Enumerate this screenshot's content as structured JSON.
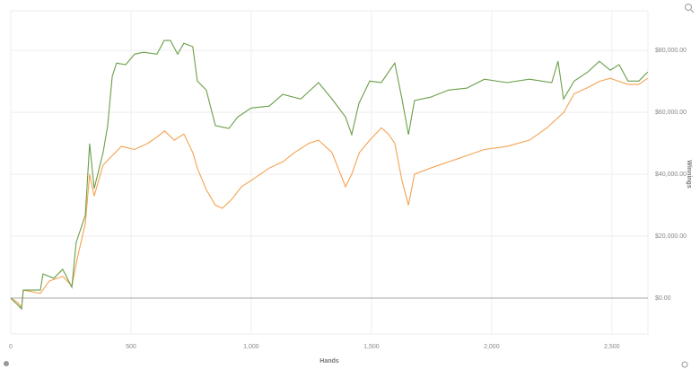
{
  "chart_data": {
    "type": "line",
    "x_label": "Hands",
    "y_label": "Winnings",
    "xlim": [
      0,
      2650
    ],
    "ylim": [
      -11600,
      92800
    ],
    "xticks": [
      0,
      500,
      {
        "value": 1000,
        "label": "1,000"
      },
      {
        "value": 1500,
        "label": "1,500"
      },
      {
        "value": 2000,
        "label": "2,000"
      },
      {
        "value": 2500,
        "label": "2,500"
      }
    ],
    "yticks": [
      {
        "value": 0,
        "label": "$0.00"
      },
      {
        "value": 20000,
        "label": "$20,000.00"
      },
      {
        "value": 40000,
        "label": "$40,000.00"
      },
      {
        "value": 60000,
        "label": "$60,000.00"
      },
      {
        "value": 80000,
        "label": "$80,000.00"
      }
    ],
    "grid": true,
    "series": [
      {
        "color": "#f4a24f",
        "x": [
          0,
          30,
          45,
          52,
          123,
          160,
          216,
          254,
          280,
          310,
          328,
          347,
          384,
          422,
          460,
          515,
          570,
          608,
          640,
          680,
          720,
          757,
          776,
          813,
          851,
          880,
          920,
          960,
          1000,
          1075,
          1131,
          1180,
          1240,
          1280,
          1336,
          1392,
          1418,
          1450,
          1493,
          1541,
          1570,
          1597,
          1627,
          1654,
          1679,
          1746,
          1821,
          1896,
          1970,
          2063,
          2157,
          2230,
          2300,
          2343,
          2400,
          2448,
          2493,
          2530,
          2567,
          2612,
          2649
        ],
        "values": [
          0,
          -1500,
          -3000,
          2600,
          1500,
          5500,
          7000,
          4000,
          14000,
          24000,
          40000,
          33000,
          43000,
          46000,
          49000,
          48000,
          50000,
          52000,
          54000,
          51000,
          53000,
          47000,
          42000,
          35000,
          30000,
          29000,
          32000,
          36000,
          38000,
          42000,
          44000,
          47000,
          50000,
          51000,
          47000,
          36000,
          40000,
          47000,
          51000,
          55000,
          53000,
          50000,
          38000,
          30000,
          40000,
          42000,
          44000,
          46000,
          48000,
          49000,
          51000,
          55000,
          60000,
          66000,
          68000,
          70000,
          71000,
          70000,
          69000,
          69000,
          71000
        ]
      },
      {
        "color": "#6a9f48",
        "x": [
          0,
          30,
          45,
          52,
          123,
          134,
          179,
          216,
          254,
          272,
          310,
          328,
          347,
          384,
          403,
          422,
          440,
          478,
          515,
          552,
          608,
          638,
          664,
          694,
          720,
          757,
          776,
          813,
          851,
          907,
          944,
          1000,
          1075,
          1131,
          1206,
          1280,
          1336,
          1392,
          1418,
          1448,
          1493,
          1541,
          1597,
          1627,
          1654,
          1679,
          1746,
          1821,
          1896,
          1970,
          2063,
          2157,
          2250,
          2276,
          2299,
          2343,
          2399,
          2448,
          2493,
          2530,
          2567,
          2612,
          2649
        ],
        "values": [
          0,
          -2300,
          -3500,
          2600,
          2600,
          7800,
          6400,
          9300,
          3500,
          18000,
          26700,
          49900,
          35400,
          47000,
          55700,
          71600,
          75900,
          75400,
          78800,
          79400,
          78800,
          83200,
          83200,
          78800,
          82300,
          81200,
          70100,
          67200,
          55700,
          54800,
          58500,
          61400,
          62000,
          65800,
          64300,
          69600,
          64300,
          58500,
          52800,
          62900,
          70100,
          69600,
          75900,
          64300,
          52800,
          63800,
          64900,
          67200,
          67800,
          70700,
          69600,
          70700,
          69600,
          76500,
          64300,
          70100,
          73000,
          76500,
          73600,
          75400,
          70100,
          70100,
          73000
        ]
      }
    ]
  }
}
